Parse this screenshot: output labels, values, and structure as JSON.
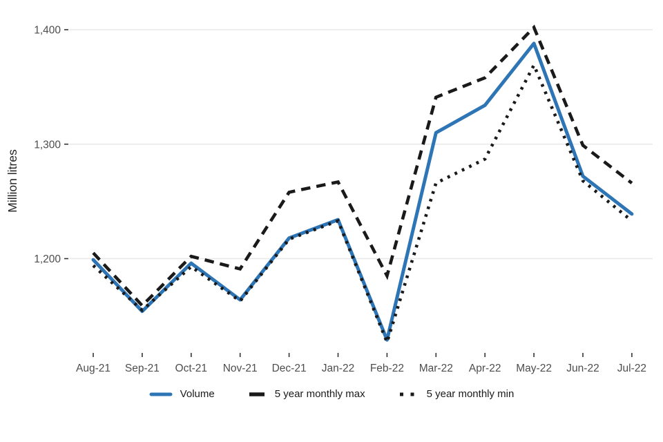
{
  "chart_data": {
    "type": "line",
    "title": "",
    "xlabel": "",
    "ylabel": "Million litres",
    "ylim": [
      1120,
      1410
    ],
    "yticks": [
      1200,
      1300,
      1400
    ],
    "ytick_labels": [
      "1,200",
      "1,300",
      "1,400"
    ],
    "grid": "horizontal-major-only",
    "legend_position": "bottom-center",
    "background": "#ffffff",
    "grid_color": "#e8e8e8",
    "tick_color": "#333333",
    "tick_label_color": "#4d4d4d",
    "axis_title_color": "#262626",
    "categories": [
      "Aug-21",
      "Sep-21",
      "Oct-21",
      "Nov-21",
      "Dec-21",
      "Jan-22",
      "Feb-22",
      "Mar-22",
      "Apr-22",
      "May-22",
      "Jun-22",
      "Jul-22"
    ],
    "series": [
      {
        "name": "Volume",
        "style": "solid",
        "color": "#2e75b6",
        "values": [
          1199,
          1154,
          1196,
          1164,
          1218,
          1234,
          1129,
          1310,
          1334,
          1388,
          1272,
          1239
        ]
      },
      {
        "name": "5 year monthly max",
        "style": "dashed",
        "color": "#1a1a1a",
        "values": [
          1205,
          1159,
          1202,
          1191,
          1258,
          1267,
          1185,
          1341,
          1358,
          1402,
          1299,
          1266
        ]
      },
      {
        "name": "5 year monthly min",
        "style": "dotted",
        "color": "#1a1a1a",
        "values": [
          1194,
          1155,
          1193,
          1163,
          1217,
          1233,
          1127,
          1266,
          1287,
          1369,
          1268,
          1233
        ]
      }
    ]
  }
}
